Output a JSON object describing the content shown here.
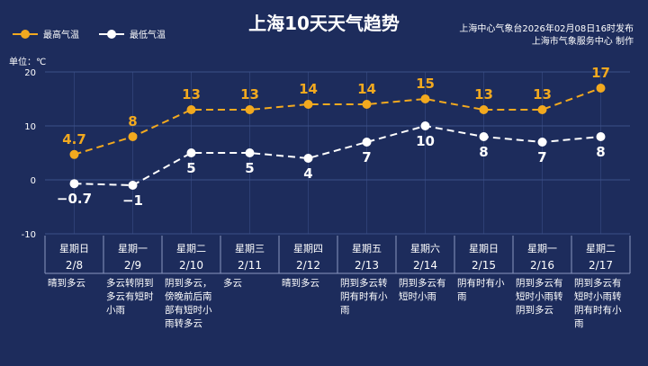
{
  "title": "上海10天天气趋势",
  "legend": {
    "high_label": "最高气温",
    "low_label": "最低气温"
  },
  "source": {
    "line1": "上海中心气象台2026年02月08日16时发布",
    "line2": "上海市气象服务中心  制作"
  },
  "colors": {
    "background": "#1d2c5c",
    "high": "#f2a91f",
    "low": "#ffffff",
    "grid": "#3c5088",
    "weekend": "#f2a91f"
  },
  "chart_data": {
    "type": "line",
    "unit_label": "单位：℃",
    "ylim": [
      -10,
      20
    ],
    "yticks": [
      -10,
      0,
      10,
      20
    ],
    "grid": true,
    "legend_position": "top-left",
    "categories": [
      "2/8",
      "2/9",
      "2/10",
      "2/11",
      "2/12",
      "2/13",
      "2/14",
      "2/15",
      "2/16",
      "2/17"
    ],
    "series": [
      {
        "name": "最高气温",
        "values": [
          4.7,
          8,
          13,
          13,
          14,
          14,
          15,
          13,
          13,
          17
        ],
        "labels": [
          "4.7",
          "8",
          "13",
          "13",
          "14",
          "14",
          "15",
          "13",
          "13",
          "17"
        ]
      },
      {
        "name": "最低气温",
        "values": [
          -0.7,
          -1,
          5,
          5,
          4,
          7,
          10,
          8,
          7,
          8
        ],
        "labels": [
          "−0.7",
          "−1",
          "5",
          "5",
          "4",
          "7",
          "10",
          "8",
          "7",
          "8"
        ]
      }
    ]
  },
  "days": [
    {
      "weekday": "星期日",
      "date": "2/8",
      "weekend": true,
      "forecast": [
        "晴到多云"
      ]
    },
    {
      "weekday": "星期一",
      "date": "2/9",
      "weekend": false,
      "forecast": [
        "多云转阴到",
        "多云有短时",
        "小雨"
      ]
    },
    {
      "weekday": "星期二",
      "date": "2/10",
      "weekend": false,
      "forecast": [
        "阴到多云，",
        "傍晚前后南",
        "部有短时小",
        "雨转多云"
      ]
    },
    {
      "weekday": "星期三",
      "date": "2/11",
      "weekend": false,
      "forecast": [
        "多云"
      ]
    },
    {
      "weekday": "星期四",
      "date": "2/12",
      "weekend": false,
      "forecast": [
        "晴到多云"
      ]
    },
    {
      "weekday": "星期五",
      "date": "2/13",
      "weekend": false,
      "forecast": [
        "阴到多云转",
        "阴有时有小",
        "雨"
      ]
    },
    {
      "weekday": "星期六",
      "date": "2/14",
      "weekend": true,
      "forecast": [
        "阴到多云有",
        "短时小雨"
      ]
    },
    {
      "weekday": "星期日",
      "date": "2/15",
      "weekend": true,
      "forecast": [
        "阴有时有小",
        "雨"
      ]
    },
    {
      "weekday": "星期一",
      "date": "2/16",
      "weekend": false,
      "forecast": [
        "阴到多云有",
        "短时小雨转",
        "阴到多云"
      ]
    },
    {
      "weekday": "星期二",
      "date": "2/17",
      "weekend": false,
      "forecast": [
        "阴到多云有",
        "短时小雨转",
        "阴有时有小",
        "雨"
      ]
    }
  ]
}
